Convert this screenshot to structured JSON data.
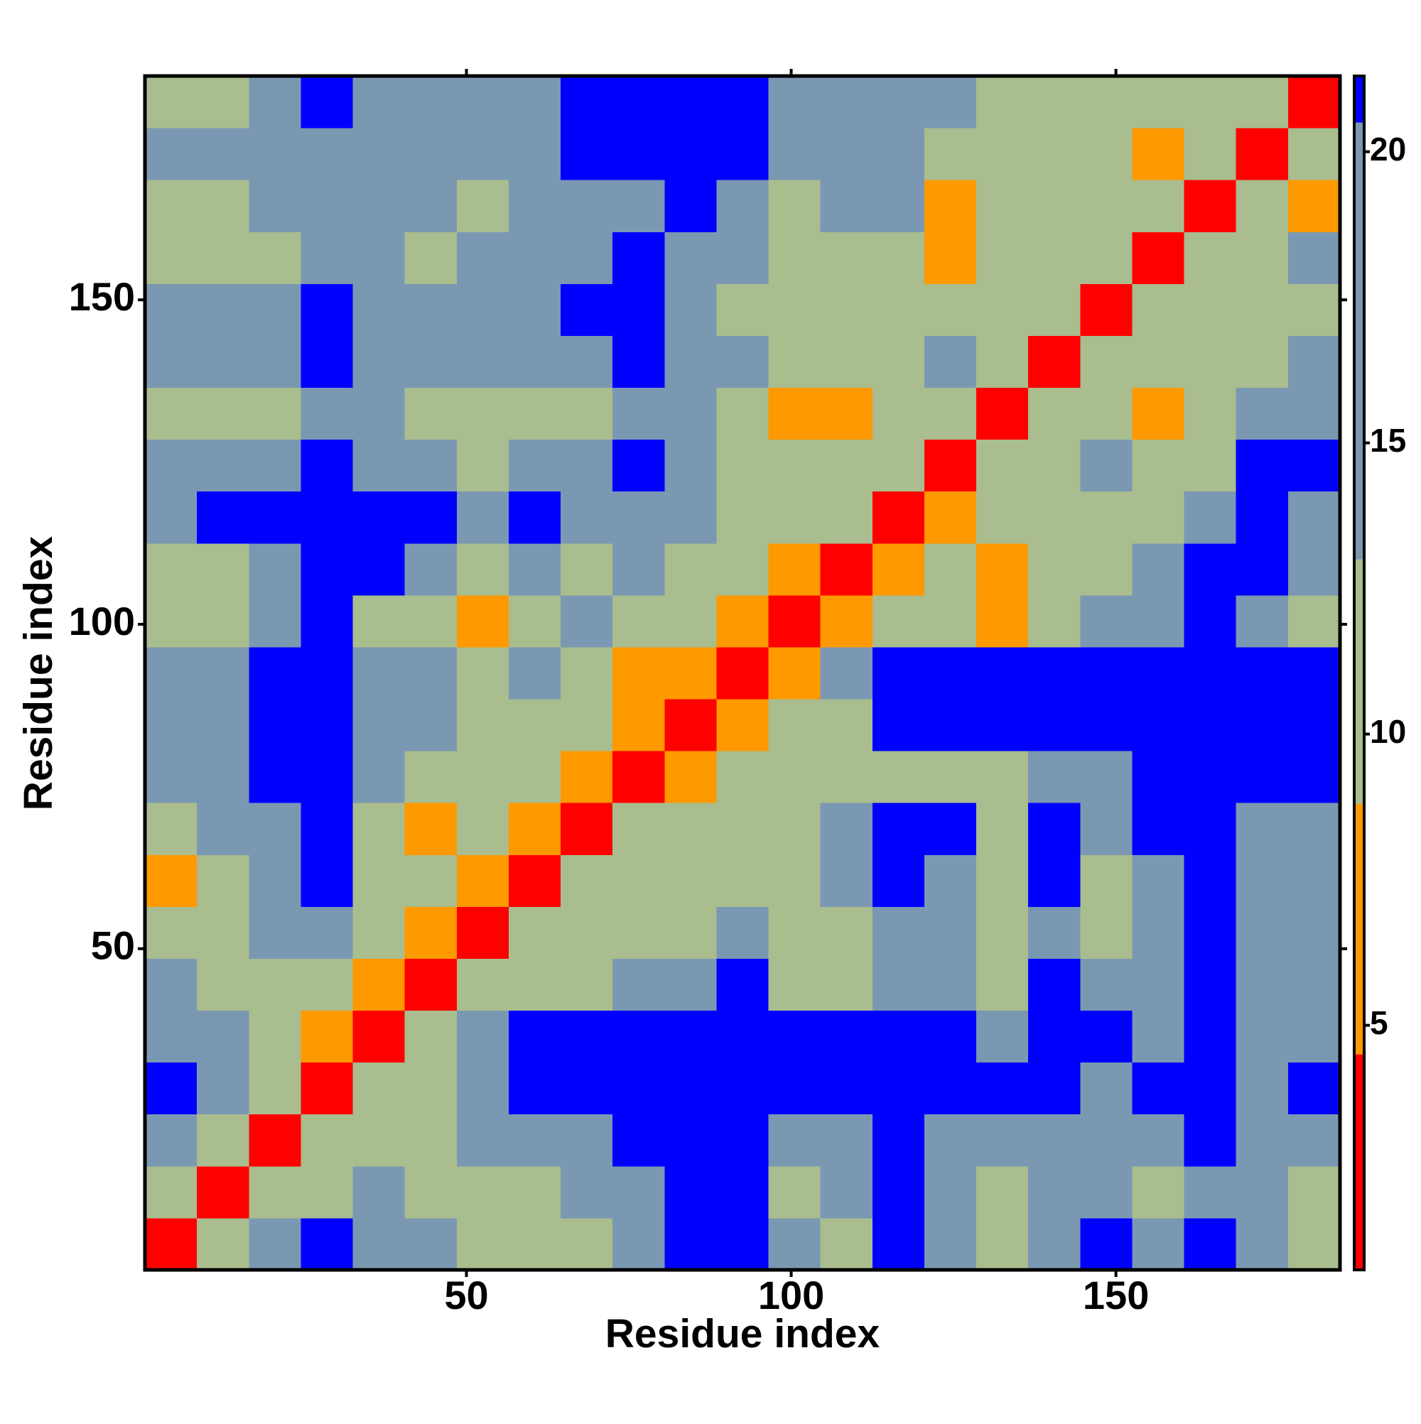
{
  "chart_data": {
    "type": "heatmap",
    "x_label": "Residue index",
    "y_label": "Residue index",
    "x_bins": [
      0.5,
      8.5,
      16.5,
      24.5,
      32.5,
      40.5,
      48.5,
      56.5,
      64.5,
      72.5,
      80.5,
      88.5,
      96.5,
      104.5,
      112.5,
      120.5,
      128.5,
      136.5,
      144.5,
      152.5,
      160.5,
      168.5,
      176.5,
      184.5
    ],
    "y_bins": [
      0.5,
      8.5,
      16.5,
      24.5,
      32.5,
      40.5,
      48.5,
      56.5,
      64.5,
      72.5,
      80.5,
      88.5,
      96.5,
      104.5,
      112.5,
      120.5,
      128.5,
      136.5,
      144.5,
      152.5,
      160.5,
      168.5,
      176.5,
      184.5
    ],
    "z": [
      [
        4,
        10,
        13,
        21,
        16,
        13,
        12,
        9,
        12,
        17,
        21,
        21,
        13,
        12,
        21,
        18,
        12,
        16,
        21,
        13,
        21,
        14,
        12
      ],
      [
        10,
        4,
        10,
        12,
        14,
        12,
        11,
        12,
        13,
        17,
        21,
        21,
        12,
        13,
        21,
        14,
        11,
        16,
        19,
        11,
        18,
        13,
        12
      ],
      [
        17,
        11,
        4,
        10,
        9,
        12,
        13,
        16,
        19,
        21,
        21,
        21,
        15,
        16,
        21,
        16,
        13,
        20,
        20,
        13,
        21,
        14,
        16
      ],
      [
        21,
        16,
        10,
        4,
        9,
        12,
        17,
        21,
        21,
        21,
        21,
        21,
        21,
        21,
        21,
        21,
        21,
        21,
        20,
        21,
        21,
        17,
        21
      ],
      [
        18,
        13,
        10,
        7,
        4,
        10,
        15,
        21,
        21,
        21,
        21,
        21,
        21,
        21,
        21,
        21,
        20,
        21,
        21,
        19,
        21,
        16,
        18
      ],
      [
        14,
        12,
        12,
        12,
        6,
        4,
        9,
        11,
        11,
        13,
        16,
        21,
        11,
        12,
        20,
        14,
        12,
        21,
        14,
        17,
        21,
        16,
        18
      ],
      [
        9,
        10,
        13,
        15,
        10,
        7,
        4,
        10,
        10,
        11,
        12,
        13,
        10,
        11,
        14,
        13,
        12,
        14,
        12,
        15,
        21,
        16,
        17
      ],
      [
        8,
        10,
        13,
        21,
        12,
        11,
        7,
        4,
        9,
        11,
        10,
        11,
        11,
        13,
        21,
        15,
        12,
        21,
        11,
        14,
        21,
        15,
        15
      ],
      [
        12,
        13,
        15,
        21,
        11,
        8,
        9,
        7,
        4,
        9,
        9,
        12,
        12,
        13,
        21,
        21,
        12,
        21,
        13,
        21,
        21,
        17,
        19
      ],
      [
        16,
        18,
        21,
        21,
        14,
        12,
        9,
        12,
        8,
        4,
        8,
        10,
        11,
        12,
        12,
        11,
        12,
        17,
        19,
        21,
        21,
        21,
        21
      ],
      [
        18,
        20,
        21,
        21,
        16,
        13,
        11,
        12,
        9,
        7,
        4,
        7,
        10,
        12,
        21,
        21,
        21,
        21,
        21,
        21,
        21,
        21,
        21
      ],
      [
        18,
        19,
        21,
        21,
        18,
        14,
        11,
        16,
        10,
        8,
        7,
        4,
        7,
        13,
        21,
        21,
        21,
        21,
        21,
        21,
        21,
        21,
        21
      ],
      [
        11,
        10,
        13,
        21,
        12,
        9,
        8,
        12,
        13,
        12,
        10,
        7,
        4,
        8,
        11,
        11,
        8,
        11,
        14,
        13,
        21,
        20,
        12
      ],
      [
        12,
        12,
        14,
        21,
        21,
        13,
        11,
        14,
        12,
        14,
        11,
        9,
        8,
        4,
        8,
        11,
        8,
        9,
        10,
        13,
        21,
        21,
        13
      ],
      [
        20,
        21,
        21,
        21,
        21,
        21,
        14,
        21,
        13,
        16,
        13,
        11,
        11,
        10,
        4,
        8,
        12,
        10,
        9,
        12,
        14,
        21,
        20
      ],
      [
        17,
        16,
        17,
        21,
        15,
        14,
        12,
        19,
        15,
        21,
        14,
        11,
        10,
        10,
        10,
        4,
        9,
        12,
        13,
        9,
        11,
        21,
        21
      ],
      [
        11,
        10,
        11,
        20,
        13,
        11,
        10,
        11,
        11,
        18,
        14,
        10,
        8,
        8,
        10,
        10,
        4,
        9,
        12,
        8,
        9,
        13,
        14
      ],
      [
        18,
        18,
        20,
        21,
        19,
        16,
        13,
        14,
        13,
        21,
        15,
        13,
        10,
        9,
        12,
        13,
        10,
        4,
        9,
        11,
        12,
        10,
        13
      ],
      [
        16,
        16,
        18,
        21,
        19,
        20,
        17,
        19,
        21,
        21,
        17,
        12,
        11,
        11,
        9,
        11,
        10,
        9,
        4,
        9,
        10,
        11,
        12
      ],
      [
        11,
        10,
        12,
        20,
        15,
        12,
        13,
        15,
        16,
        21,
        16,
        14,
        11,
        12,
        10,
        8,
        9,
        12,
        10,
        4,
        9,
        10,
        13
      ],
      [
        12,
        11,
        13,
        20,
        16,
        13,
        12,
        14,
        15,
        20,
        21,
        17,
        12,
        14,
        13,
        8,
        9,
        11,
        9,
        10,
        4,
        9,
        8
      ],
      [
        14,
        13,
        15,
        19,
        18,
        20,
        19,
        20,
        21,
        21,
        21,
        21,
        13,
        18,
        15,
        12,
        11,
        12,
        9,
        8,
        10,
        4,
        9
      ],
      [
        12,
        12,
        14,
        21,
        20,
        17,
        16,
        17,
        21,
        21,
        21,
        21,
        14,
        16,
        17,
        13,
        12,
        11,
        10,
        10,
        10,
        9,
        4
      ]
    ],
    "xlim": [
      0.5,
      184.5
    ],
    "ylim": [
      0.5,
      184.5
    ],
    "xticks": [
      50,
      100,
      150
    ],
    "yticks": [
      50,
      100,
      150
    ],
    "colorscale": [
      {
        "value": 0.8,
        "color": "#ff0000"
      },
      {
        "value": 4.5,
        "color": "#ff9900"
      },
      {
        "value": 8.8,
        "color": "#a9bd8e"
      },
      {
        "value": 13,
        "color": "#7b98b2"
      },
      {
        "value": 20.5,
        "color": "#0000ff"
      }
    ],
    "colorbar_lim": [
      0.8,
      21.3
    ],
    "colorbar_ticks": [
      5,
      10,
      15,
      20
    ]
  }
}
